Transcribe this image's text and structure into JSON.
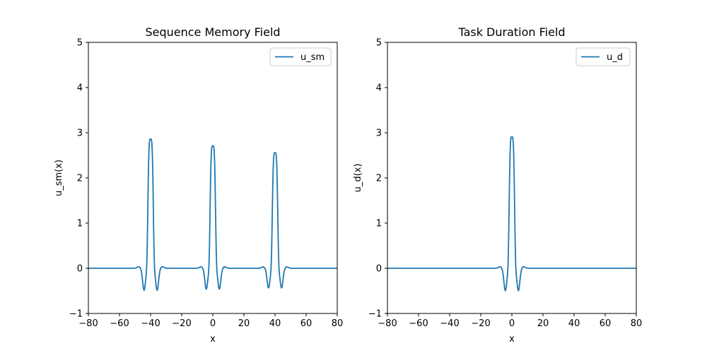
{
  "chart_data": [
    {
      "type": "line",
      "title": "Sequence Memory Field",
      "xlabel": "x",
      "ylabel": "u_sm(x)",
      "xlim": [
        -80,
        80
      ],
      "ylim": [
        -1,
        5
      ],
      "xticks": [
        -80,
        -60,
        -40,
        -20,
        0,
        20,
        40,
        60,
        80
      ],
      "yticks": [
        -1,
        0,
        1,
        2,
        3,
        4,
        5
      ],
      "grid": false,
      "legend_position": "top-right",
      "series": [
        {
          "name": "u_sm",
          "color": "#1f77b4",
          "peaks": [
            {
              "center": -40,
              "height": 2.86
            },
            {
              "center": 0,
              "height": 2.71
            },
            {
              "center": 40,
              "height": 2.56
            }
          ]
        }
      ]
    },
    {
      "type": "line",
      "title": "Task Duration Field",
      "xlabel": "x",
      "ylabel": "u_d(x)",
      "xlim": [
        -80,
        80
      ],
      "ylim": [
        -1,
        5
      ],
      "xticks": [
        -80,
        -60,
        -40,
        -20,
        0,
        20,
        40,
        60,
        80
      ],
      "yticks": [
        -1,
        0,
        1,
        2,
        3,
        4,
        5
      ],
      "grid": false,
      "legend_position": "top-right",
      "series": [
        {
          "name": "u_d",
          "color": "#1f77b4",
          "peaks": [
            {
              "center": 0,
              "height": 2.91
            }
          ]
        }
      ]
    }
  ]
}
